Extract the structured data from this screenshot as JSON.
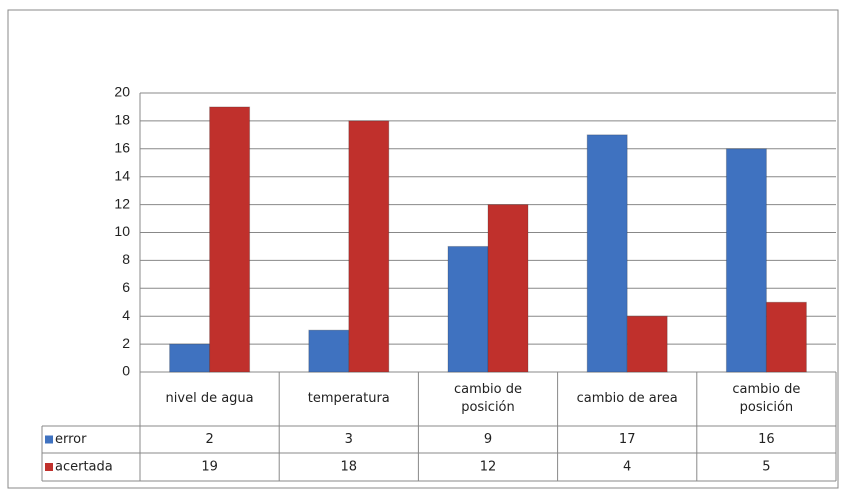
{
  "chart_data": {
    "type": "bar",
    "categories": [
      "nivel de agua",
      "temperatura",
      "cambio de posición",
      "cambio de area",
      "cambio de posición"
    ],
    "series": [
      {
        "name": "error",
        "color": "#3f72c0",
        "values": [
          2,
          3,
          9,
          17,
          16
        ]
      },
      {
        "name": "acertada",
        "color": "#c0302c",
        "values": [
          19,
          18,
          12,
          4,
          5
        ]
      }
    ],
    "ylim": [
      0,
      20
    ],
    "yticks": [
      0,
      2,
      4,
      6,
      8,
      10,
      12,
      14,
      16,
      18,
      20
    ],
    "grid": true
  }
}
